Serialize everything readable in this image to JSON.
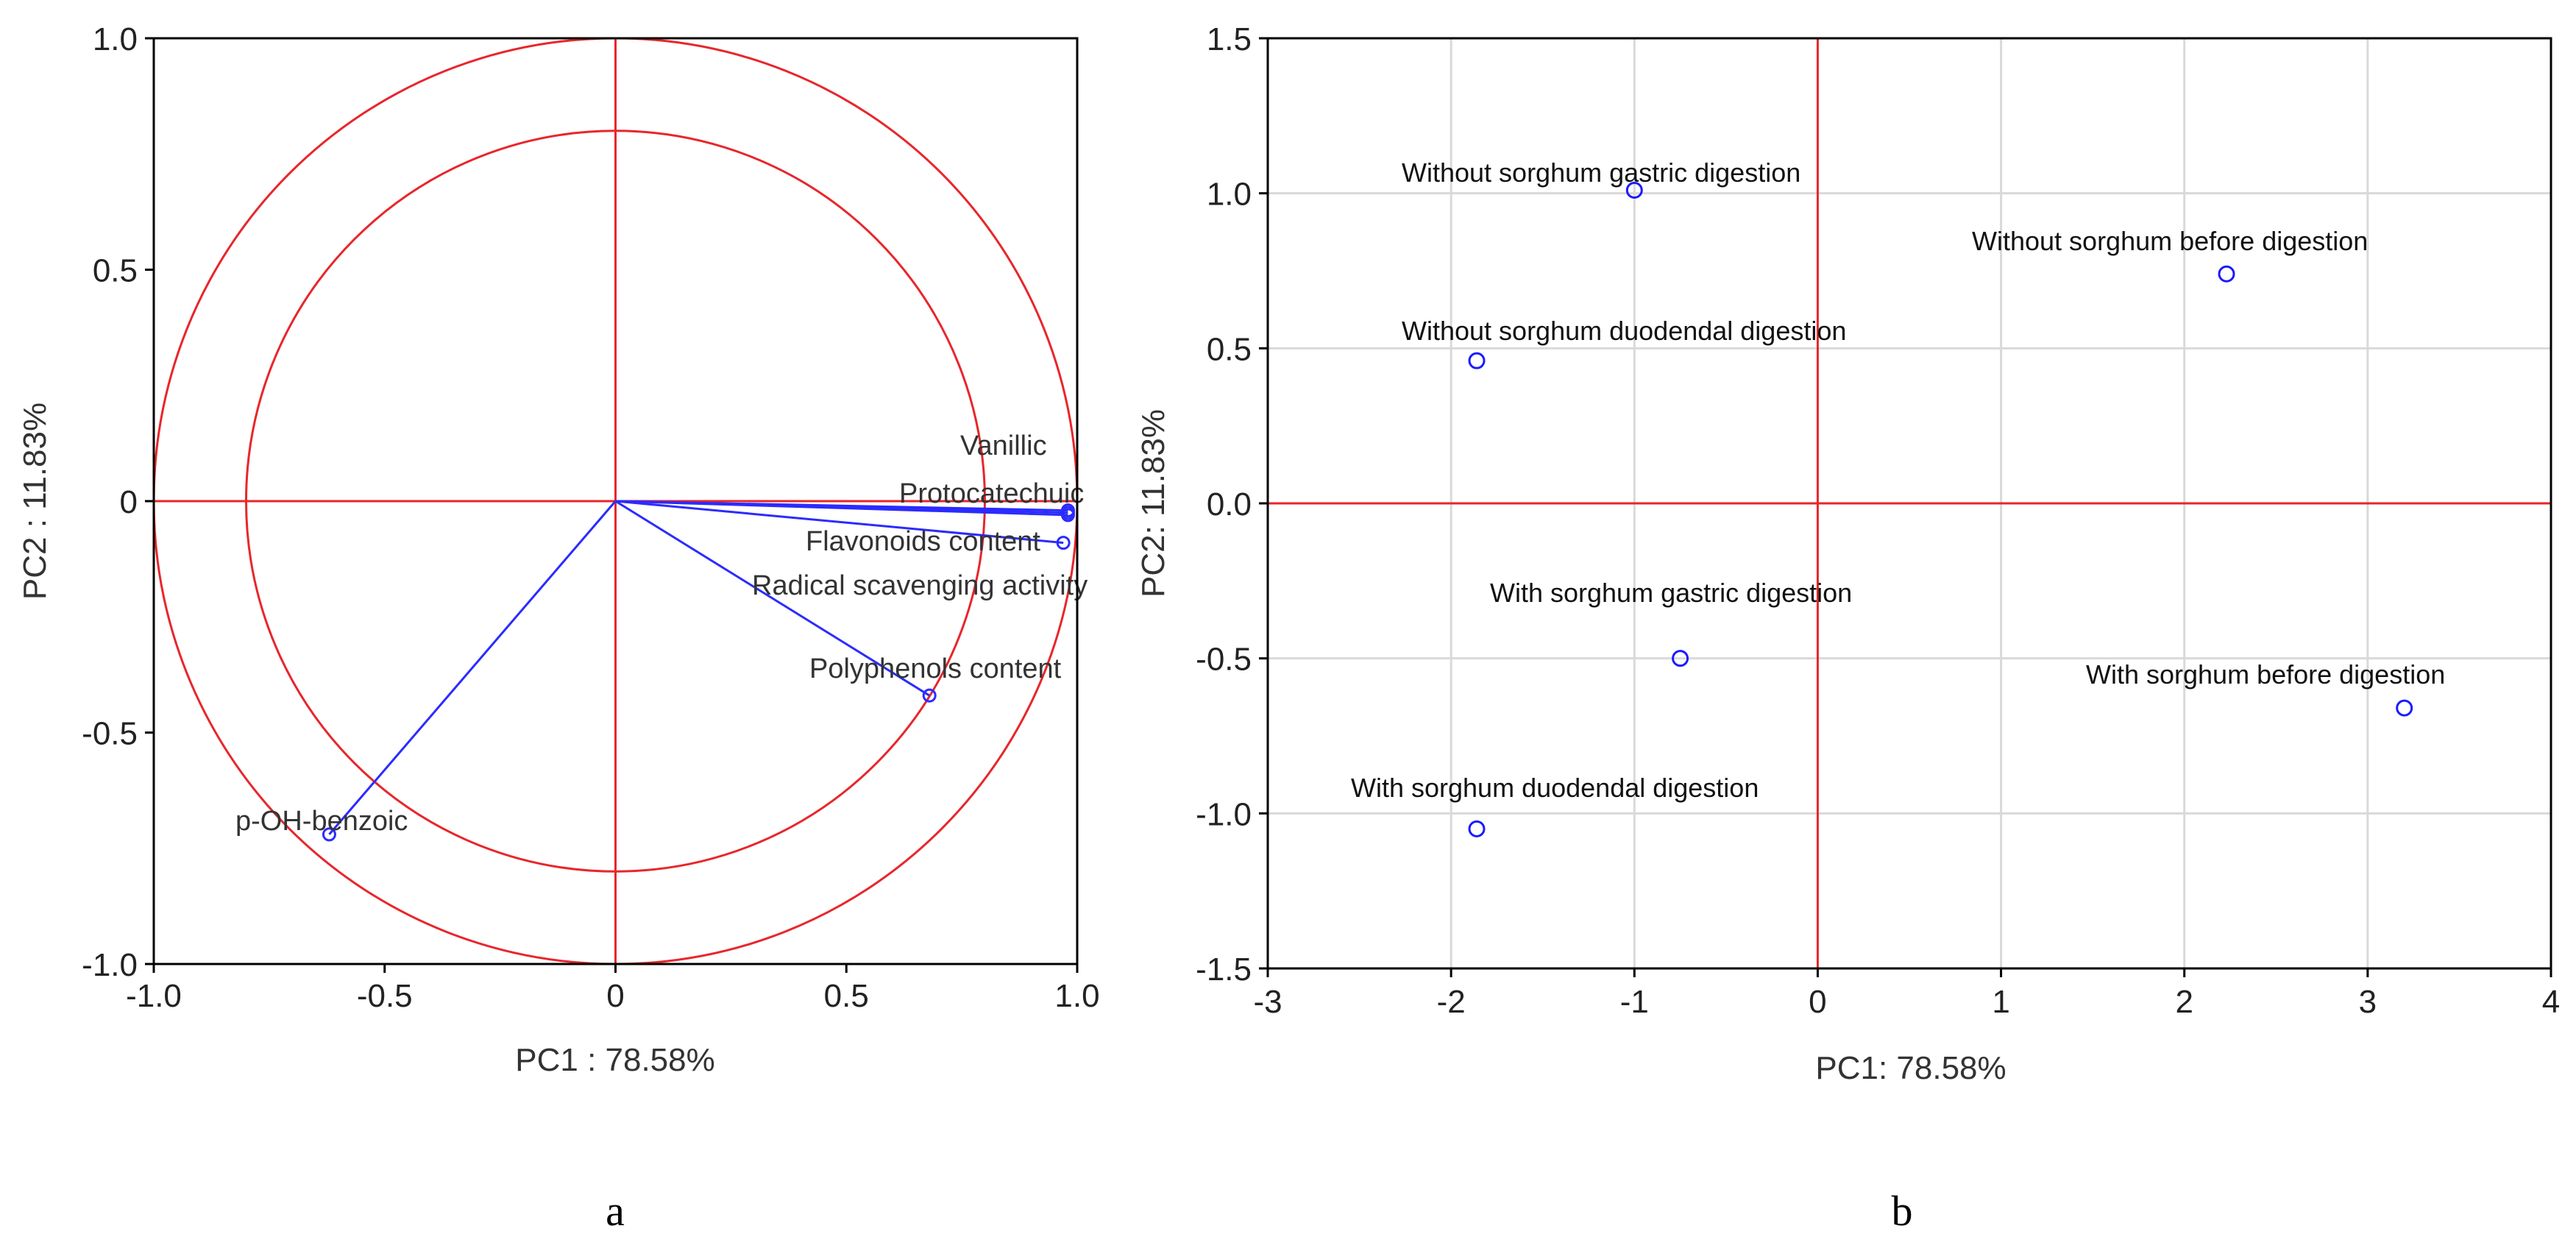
{
  "chart_data": [
    {
      "type": "scatter",
      "subtype": "pca-correlation-circle",
      "panel_label": "a",
      "xlabel": "PC1 : 78.58%",
      "ylabel": "PC2 : 11.83%",
      "xlim": [
        -1.0,
        1.0
      ],
      "ylim": [
        -1.0,
        1.0
      ],
      "x_ticks": [
        -1.0,
        -0.5,
        0,
        0.5,
        1.0
      ],
      "x_tick_labels": [
        "-1.0",
        "-0.5",
        "0",
        "0.5",
        "1.0"
      ],
      "y_ticks": [
        1.0,
        0.5,
        0,
        -0.5,
        -1.0
      ],
      "y_tick_labels": [
        "1.0",
        "0.5",
        "0",
        "-0.5",
        "-1.0"
      ],
      "circles": [
        1.0,
        0.8
      ],
      "grid": false,
      "colors": {
        "frame": "#000000",
        "reference": "#e8262b",
        "vectors": "#2b2bff"
      },
      "series": [
        {
          "name": "Vanillic",
          "x": 0.98,
          "y": -0.02
        },
        {
          "name": "Protocatechuic",
          "x": 0.98,
          "y": -0.03
        },
        {
          "name": "Flavonoids content",
          "x": 0.97,
          "y": -0.09
        },
        {
          "name": "Radical scavenging activity",
          "x": 0.98,
          "y": -0.025
        },
        {
          "name": "Polyphenols content",
          "x": 0.68,
          "y": -0.42
        },
        {
          "name": "p-OH-benzoic",
          "x": -0.62,
          "y": -0.72
        }
      ]
    },
    {
      "type": "scatter",
      "subtype": "pca-score-plot",
      "panel_label": "b",
      "xlabel": "PC1: 78.58%",
      "ylabel": "PC2: 11.83%",
      "xlim": [
        -3,
        4
      ],
      "ylim": [
        -1.5,
        1.5
      ],
      "x_ticks": [
        -3,
        -2,
        -1,
        0,
        1,
        2,
        3,
        4
      ],
      "x_tick_labels": [
        "-3",
        "-2",
        "-1",
        "0",
        "1",
        "2",
        "3",
        "4"
      ],
      "y_ticks": [
        1.5,
        1.0,
        0.5,
        0.0,
        -0.5,
        -1.0,
        -1.5
      ],
      "y_tick_labels": [
        "1.5",
        "1.0",
        "0.5",
        "0.0",
        "-0.5",
        "-1.0",
        "-1.5"
      ],
      "grid": true,
      "colors": {
        "frame": "#000000",
        "reference": "#e8262b",
        "grid": "#d9d9d9",
        "points": "#1a1aff"
      },
      "series": [
        {
          "name": "Without sorghum gastric digestion",
          "x": -1.0,
          "y": 1.01
        },
        {
          "name": "Without  sorghum before digestion",
          "x": 2.23,
          "y": 0.74
        },
        {
          "name": "Without sorghum duodendal digestion",
          "x": -1.86,
          "y": 0.46
        },
        {
          "name": "With sorghum gastric digestion",
          "x": -0.75,
          "y": -0.5
        },
        {
          "name": "With sorghum before digestion",
          "x": 3.2,
          "y": -0.66
        },
        {
          "name": "With sorghum duodendal digestion",
          "x": -1.86,
          "y": -1.05
        }
      ]
    }
  ]
}
